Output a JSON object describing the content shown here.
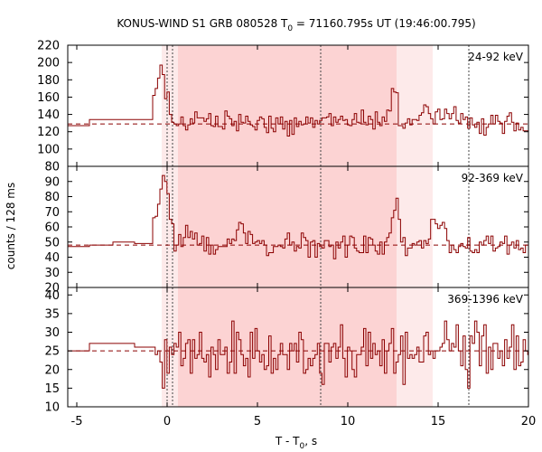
{
  "chart_data": {
    "type": "line",
    "title_main": "KONUS-WIND S1 GRB 080528 T",
    "title_sub": "0",
    "title_rest": " = 71160.795s UT (19:46:00.795)",
    "xlabel_main": "T - T",
    "xlabel_sub": "0",
    "xlabel_rest": ", s",
    "ylabel": "counts / 128 ms",
    "xlim": [
      -5.5,
      20
    ],
    "x_ticks": [
      -5,
      0,
      5,
      10,
      15,
      20
    ],
    "shaded_regions": [
      {
        "x0": -0.3,
        "x1": 14.7,
        "tone": "light"
      },
      {
        "x0": 0.6,
        "x1": 12.7,
        "tone": "dark"
      }
    ],
    "vertical_markers": [
      0.0,
      0.3,
      8.5,
      16.7
    ],
    "colors": {
      "curve": "#8b0000",
      "shade_light": "#fdeaea",
      "shade_dark": "#fcd3d3",
      "marker": "#444444"
    },
    "panels": [
      {
        "band": "24-92 keV",
        "ylim": [
          80,
          220
        ],
        "y_ticks": [
          80,
          100,
          120,
          140,
          160,
          180,
          200,
          220
        ],
        "background_level": 129,
        "baseline": 129,
        "pre": [
          [
            -5.5,
            127
          ],
          [
            -4.3,
            134
          ],
          [
            -1.8,
            134
          ],
          [
            -0.8,
            134
          ]
        ],
        "spike": [
          [
            -0.8,
            162
          ],
          [
            -0.66,
            170
          ],
          [
            -0.53,
            182
          ],
          [
            -0.4,
            197
          ],
          [
            -0.27,
            186
          ],
          [
            -0.14,
            158
          ],
          [
            -0.01,
            166
          ],
          [
            0.12,
            140
          ],
          [
            0.25,
            131
          ]
        ],
        "noise": 9,
        "bumps": [
          [
            12.5,
            0.25,
            40
          ],
          [
            14.2,
            0.8,
            14
          ],
          [
            15.5,
            0.5,
            10
          ],
          [
            2.5,
            0.8,
            6
          ],
          [
            10.5,
            1.5,
            7
          ]
        ]
      },
      {
        "band": "92-369 keV",
        "ylim": [
          20,
          100
        ],
        "y_ticks": [
          20,
          30,
          40,
          50,
          60,
          70,
          80,
          90
        ],
        "background_level": 48,
        "baseline": 48,
        "pre": [
          [
            -5.5,
            47
          ],
          [
            -4.3,
            48
          ],
          [
            -3.0,
            50
          ],
          [
            -1.8,
            49
          ],
          [
            -0.8,
            49
          ]
        ],
        "spike": [
          [
            -0.8,
            66
          ],
          [
            -0.66,
            67
          ],
          [
            -0.53,
            75
          ],
          [
            -0.4,
            85
          ],
          [
            -0.27,
            94
          ],
          [
            -0.14,
            90
          ],
          [
            -0.01,
            82
          ],
          [
            0.12,
            65
          ],
          [
            0.25,
            62
          ]
        ],
        "noise": 6,
        "bumps": [
          [
            12.6,
            0.2,
            34
          ],
          [
            14.9,
            0.5,
            15
          ],
          [
            1.2,
            0.6,
            8
          ],
          [
            4.0,
            0.6,
            8
          ]
        ]
      },
      {
        "band": "369-1396 keV",
        "ylim": [
          10,
          42
        ],
        "y_ticks": [
          10,
          15,
          20,
          25,
          30,
          35,
          40
        ],
        "background_level": 25,
        "baseline": 25,
        "pre": [
          [
            -5.5,
            25
          ],
          [
            -4.3,
            27
          ],
          [
            -1.8,
            26
          ],
          [
            -0.8,
            26
          ]
        ],
        "spike": [
          [
            -0.8,
            26
          ],
          [
            -0.66,
            24
          ],
          [
            -0.53,
            25
          ],
          [
            -0.4,
            22
          ],
          [
            -0.27,
            15
          ],
          [
            -0.14,
            28
          ],
          [
            -0.01,
            19
          ],
          [
            0.12,
            26
          ],
          [
            0.25,
            24
          ]
        ],
        "noise": 5.5,
        "bumps": []
      }
    ]
  }
}
